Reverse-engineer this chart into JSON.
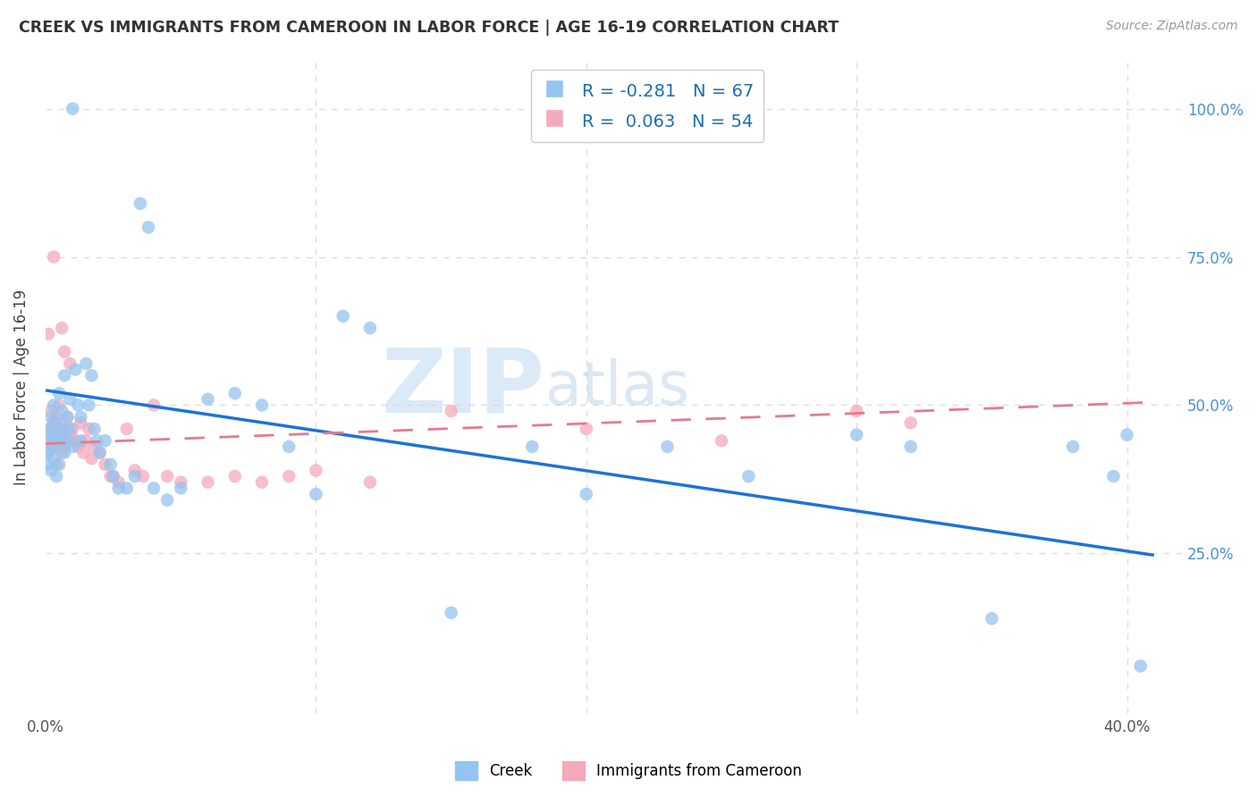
{
  "title": "CREEK VS IMMIGRANTS FROM CAMEROON IN LABOR FORCE | AGE 16-19 CORRELATION CHART",
  "source": "Source: ZipAtlas.com",
  "ylabel": "In Labor Force | Age 16-19",
  "xlim": [
    0.0,
    0.42
  ],
  "ylim": [
    -0.02,
    1.08
  ],
  "creek_color": "#94C4F0",
  "cameroon_color": "#F5AABB",
  "creek_line_color": "#1E72D9",
  "cameroon_line_color": "#E87A8A",
  "background_color": "#FFFFFF",
  "grid_color": "#DEDEDE",
  "watermark_zip_color": "#C0D8F0",
  "watermark_atlas_color": "#B0CBE8",
  "creek_line_x0": 0.0,
  "creek_line_y0": 0.525,
  "creek_line_x1": 0.41,
  "creek_line_y1": 0.247,
  "cam_line_x0": 0.0,
  "cam_line_y0": 0.435,
  "cam_line_x1": 0.41,
  "cam_line_y1": 0.505,
  "creek_pts_x": [
    0.001,
    0.001,
    0.001,
    0.002,
    0.002,
    0.002,
    0.002,
    0.003,
    0.003,
    0.003,
    0.004,
    0.004,
    0.004,
    0.005,
    0.005,
    0.005,
    0.006,
    0.006,
    0.007,
    0.007,
    0.007,
    0.008,
    0.008,
    0.009,
    0.009,
    0.01,
    0.01,
    0.011,
    0.012,
    0.013,
    0.013,
    0.015,
    0.016,
    0.017,
    0.018,
    0.019,
    0.02,
    0.022,
    0.024,
    0.025,
    0.027,
    0.03,
    0.033,
    0.035,
    0.038,
    0.04,
    0.045,
    0.05,
    0.06,
    0.07,
    0.08,
    0.09,
    0.1,
    0.11,
    0.12,
    0.15,
    0.18,
    0.2,
    0.23,
    0.26,
    0.3,
    0.32,
    0.35,
    0.38,
    0.395,
    0.4,
    0.405
  ],
  "creek_pts_y": [
    0.42,
    0.45,
    0.4,
    0.48,
    0.43,
    0.46,
    0.39,
    0.5,
    0.44,
    0.41,
    0.47,
    0.43,
    0.38,
    0.52,
    0.45,
    0.4,
    0.49,
    0.44,
    0.55,
    0.46,
    0.42,
    0.48,
    0.44,
    0.51,
    0.46,
    1.0,
    0.43,
    0.56,
    0.5,
    0.48,
    0.44,
    0.57,
    0.5,
    0.55,
    0.46,
    0.44,
    0.42,
    0.44,
    0.4,
    0.38,
    0.36,
    0.36,
    0.38,
    0.84,
    0.8,
    0.36,
    0.34,
    0.36,
    0.51,
    0.52,
    0.5,
    0.43,
    0.35,
    0.65,
    0.63,
    0.15,
    0.43,
    0.35,
    0.43,
    0.38,
    0.45,
    0.43,
    0.14,
    0.43,
    0.38,
    0.45,
    0.06
  ],
  "cam_pts_x": [
    0.001,
    0.001,
    0.001,
    0.002,
    0.002,
    0.003,
    0.003,
    0.003,
    0.004,
    0.004,
    0.004,
    0.005,
    0.005,
    0.005,
    0.006,
    0.006,
    0.006,
    0.007,
    0.007,
    0.008,
    0.008,
    0.009,
    0.009,
    0.01,
    0.011,
    0.012,
    0.013,
    0.014,
    0.015,
    0.016,
    0.017,
    0.018,
    0.02,
    0.022,
    0.024,
    0.025,
    0.027,
    0.03,
    0.033,
    0.036,
    0.04,
    0.045,
    0.05,
    0.06,
    0.07,
    0.08,
    0.09,
    0.1,
    0.12,
    0.15,
    0.2,
    0.25,
    0.3,
    0.32
  ],
  "cam_pts_y": [
    0.62,
    0.46,
    0.42,
    0.49,
    0.44,
    0.75,
    0.47,
    0.43,
    0.48,
    0.44,
    0.4,
    0.5,
    0.46,
    0.43,
    0.63,
    0.46,
    0.42,
    0.59,
    0.43,
    0.48,
    0.44,
    0.57,
    0.45,
    0.46,
    0.44,
    0.43,
    0.47,
    0.42,
    0.44,
    0.46,
    0.41,
    0.43,
    0.42,
    0.4,
    0.38,
    0.38,
    0.37,
    0.46,
    0.39,
    0.38,
    0.5,
    0.38,
    0.37,
    0.37,
    0.38,
    0.37,
    0.38,
    0.39,
    0.37,
    0.49,
    0.46,
    0.44,
    0.49,
    0.47
  ]
}
